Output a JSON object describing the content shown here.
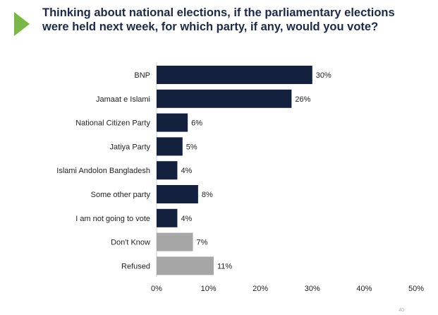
{
  "slide": {
    "title": "Thinking about national elections, if the parliamentary elections were held next week, for which party, if any, would you vote?",
    "page_number": "40"
  },
  "colors": {
    "primary_bar": "#13213f",
    "secondary_bar": "#a6a6a6",
    "accent": "#7ab648",
    "title": "#1c2a4a"
  },
  "icons": {
    "accent": "triangle-arrow-icon"
  },
  "chart_data": {
    "type": "bar",
    "orientation": "horizontal",
    "title": "",
    "xlabel": "",
    "ylabel": "",
    "xlim": [
      0,
      50
    ],
    "x_ticks": [
      0,
      10,
      20,
      30,
      40,
      50
    ],
    "x_tick_labels": [
      "0%",
      "10%",
      "20%",
      "30%",
      "40%",
      "50%"
    ],
    "grid": false,
    "legend": "none",
    "categories": [
      "BNP",
      "Jamaat e Islami",
      "National Citizen Party",
      "Jatiya Party",
      "Islami Andolon Bangladesh",
      "Some other party",
      "I am not going to vote",
      "Don't Know",
      "Refused"
    ],
    "values": [
      30,
      26,
      6,
      5,
      4,
      8,
      4,
      7,
      11
    ],
    "value_labels": [
      "30%",
      "26%",
      "6%",
      "5%",
      "4%",
      "8%",
      "4%",
      "7%",
      "11%"
    ],
    "bar_colors": [
      "primary",
      "primary",
      "primary",
      "primary",
      "primary",
      "primary",
      "primary",
      "secondary",
      "secondary"
    ]
  }
}
